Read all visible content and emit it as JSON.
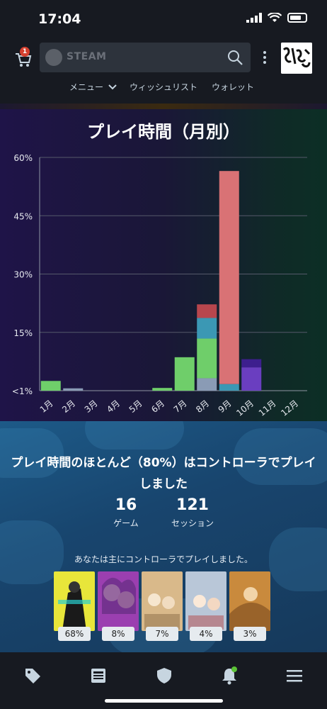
{
  "status_bar": {
    "time": "17:04"
  },
  "header": {
    "cart_count": "1",
    "search_brand": "STEAM",
    "nav": [
      {
        "label": "メニュー"
      },
      {
        "label": "ウィッシュリスト"
      },
      {
        "label": "ウォレット"
      }
    ]
  },
  "playtime": {
    "title": "プレイ時間（月別）",
    "chart_data": {
      "type": "bar",
      "stacked": true,
      "categories": [
        "1月",
        "2月",
        "3月",
        "4月",
        "5月",
        "6月",
        "7月",
        "8月",
        "9月",
        "10月",
        "11月",
        "12月"
      ],
      "y_tick_labels": [
        "<1%",
        "15%",
        "30%",
        "45%",
        "60%"
      ],
      "ylim": [
        0,
        60
      ],
      "grid": true,
      "series": [
        {
          "color": "#8a9bb5",
          "values": [
            0,
            0.6,
            0,
            0,
            0,
            0,
            0,
            3.2,
            0,
            0,
            0,
            0
          ]
        },
        {
          "color": "#6fce6a",
          "values": [
            2.5,
            0,
            0,
            0,
            0,
            0.7,
            8.6,
            10.2,
            0,
            0,
            0,
            0
          ]
        },
        {
          "color": "#3b98b4",
          "values": [
            0,
            0,
            0,
            0,
            0,
            0,
            0,
            5.3,
            1.7,
            0,
            0,
            0
          ]
        },
        {
          "color": "#b8464d",
          "values": [
            0,
            0,
            0,
            0,
            0,
            0,
            0,
            3.5,
            0,
            0,
            0,
            0
          ]
        },
        {
          "color": "#d97275",
          "values": [
            0,
            0,
            0,
            0,
            0,
            0,
            0,
            0,
            54.8,
            0,
            0,
            0
          ]
        },
        {
          "color": "#6a3ec0",
          "values": [
            0,
            0,
            0,
            0,
            0,
            0,
            0,
            0,
            0,
            6.0,
            0,
            0
          ]
        },
        {
          "color": "#3d1f8e",
          "values": [
            0,
            0,
            0,
            0,
            0,
            0,
            0,
            0,
            0,
            2.1,
            0,
            0
          ]
        }
      ]
    }
  },
  "controller": {
    "title": "プレイ時間のほとんど（80%）はコントローラでプレイしました",
    "games_count": "16",
    "games_label": "ゲーム",
    "sessions_count": "121",
    "sessions_label": "セッション",
    "subtitle": "あなたは主にコントローラでプレイしました。",
    "games": [
      {
        "percent": "68%",
        "color": "#e8e63a"
      },
      {
        "percent": "8%",
        "color": "#9b3fb0"
      },
      {
        "percent": "7%",
        "color": "#d9b98a"
      },
      {
        "percent": "4%",
        "color": "#b9c7d8"
      },
      {
        "percent": "3%",
        "color": "#c98a3d"
      }
    ]
  },
  "bottom_nav": [
    {
      "icon": "tag-icon"
    },
    {
      "icon": "news-icon"
    },
    {
      "icon": "shield-icon"
    },
    {
      "icon": "bell-icon"
    },
    {
      "icon": "menu-icon"
    }
  ]
}
